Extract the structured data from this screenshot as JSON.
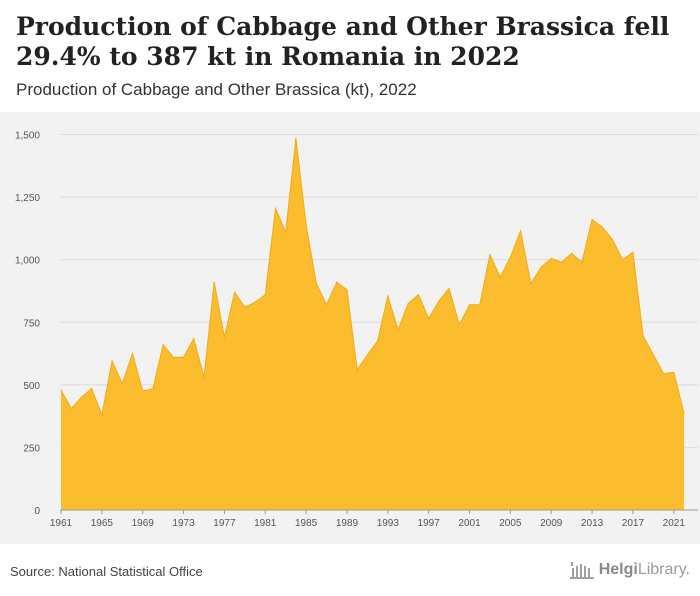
{
  "title": "Production of Cabbage and Other Brassica fell 29.4% to 387 kt in Romania in 2022",
  "subtitle": "Production of Cabbage and Other Brassica (kt), 2022",
  "source": "Source: National Statistical Office",
  "brand": {
    "name_bold": "Helgi",
    "name_rest": "Library."
  },
  "colors": {
    "fill": "#fbbd2e",
    "stroke": "#f3aa14",
    "background": "#f2f2f2",
    "grid": "#dddddd"
  },
  "chart_data": {
    "type": "area",
    "x": [
      1961,
      1962,
      1963,
      1964,
      1965,
      1966,
      1967,
      1968,
      1969,
      1970,
      1971,
      1972,
      1973,
      1974,
      1975,
      1976,
      1977,
      1978,
      1979,
      1980,
      1981,
      1982,
      1983,
      1984,
      1985,
      1986,
      1987,
      1988,
      1989,
      1990,
      1991,
      1992,
      1993,
      1994,
      1995,
      1996,
      1997,
      1998,
      1999,
      2000,
      2001,
      2002,
      2003,
      2004,
      2005,
      2006,
      2007,
      2008,
      2009,
      2010,
      2011,
      2012,
      2013,
      2014,
      2015,
      2016,
      2017,
      2018,
      2019,
      2020,
      2021,
      2022
    ],
    "values": [
      480,
      405,
      450,
      485,
      380,
      595,
      505,
      625,
      475,
      485,
      660,
      610,
      610,
      685,
      530,
      910,
      690,
      870,
      810,
      830,
      860,
      1205,
      1110,
      1485,
      1140,
      905,
      820,
      910,
      880,
      560,
      620,
      675,
      855,
      720,
      825,
      860,
      765,
      835,
      885,
      740,
      820,
      820,
      1020,
      930,
      1010,
      1115,
      905,
      970,
      1005,
      990,
      1025,
      990,
      1160,
      1130,
      1080,
      1000,
      1030,
      695,
      620,
      545,
      550,
      387
    ],
    "x_ticks": [
      "1961",
      "1965",
      "1969",
      "1973",
      "1977",
      "1981",
      "1985",
      "1989",
      "1993",
      "1997",
      "2001",
      "2005",
      "2009",
      "2013",
      "2017",
      "2021"
    ],
    "y_ticks": [
      "0",
      "250",
      "500",
      "750",
      "1,000",
      "1,250",
      "1,500"
    ],
    "ylim": [
      0,
      1550
    ],
    "grid": "horizontal",
    "legend": "none"
  }
}
